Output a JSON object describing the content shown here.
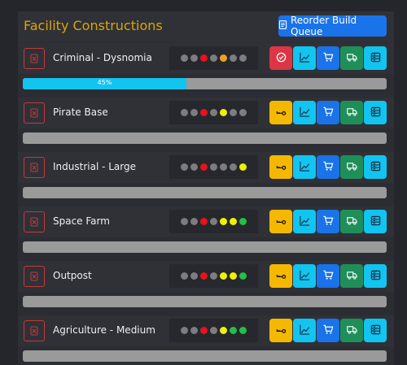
{
  "header": {
    "title": "Facility Constructions",
    "reorder_label": "Reorder Build Queue",
    "reorder_icon": "list-icon"
  },
  "colors": {
    "dot_gray": "#7b7d80",
    "dot_red": "#e8121b",
    "dot_orange": "#f0a020",
    "dot_yellow": "#f0f000",
    "dot_green": "#22c048",
    "danger": "#dc3545",
    "warning": "#f5b800",
    "info": "#12c4f0",
    "primary": "#1a73e8",
    "success": "#1f8f5a"
  },
  "facilities": [
    {
      "name": "Criminal - Dysnomia",
      "dots": [
        "gray",
        "gray",
        "red",
        "gray",
        "orange",
        "gray",
        "gray"
      ],
      "first_action": {
        "icon": "check-circle-icon",
        "color": "danger"
      },
      "progress": 45,
      "progress_label": "45%"
    },
    {
      "name": "Pirate Base",
      "dots": [
        "gray",
        "gray",
        "red",
        "gray",
        "yellow",
        "gray",
        "gray"
      ],
      "first_action": {
        "icon": "key-icon",
        "color": "warning"
      },
      "progress": 0,
      "progress_label": ""
    },
    {
      "name": "Industrial - Large",
      "dots": [
        "gray",
        "gray",
        "red",
        "gray",
        "gray",
        "gray",
        "yellow"
      ],
      "first_action": {
        "icon": "key-icon",
        "color": "warning"
      },
      "progress": 0,
      "progress_label": ""
    },
    {
      "name": "Space Farm",
      "dots": [
        "gray",
        "gray",
        "red",
        "gray",
        "yellow",
        "yellow",
        "green"
      ],
      "first_action": {
        "icon": "key-icon",
        "color": "warning"
      },
      "progress": 0,
      "progress_label": ""
    },
    {
      "name": "Outpost",
      "dots": [
        "gray",
        "gray",
        "red",
        "gray",
        "yellow",
        "yellow",
        "green"
      ],
      "first_action": {
        "icon": "key-icon",
        "color": "warning"
      },
      "progress": 0,
      "progress_label": ""
    },
    {
      "name": "Agriculture - Medium",
      "dots": [
        "gray",
        "gray",
        "red",
        "gray",
        "yellow",
        "green",
        "green"
      ],
      "first_action": {
        "icon": "key-icon",
        "color": "warning"
      },
      "progress": 0,
      "progress_label": ""
    }
  ],
  "actions": [
    {
      "icon": "chart-icon",
      "color": "info"
    },
    {
      "icon": "cart-icon",
      "color": "primary"
    },
    {
      "icon": "truck-icon",
      "color": "success"
    },
    {
      "icon": "storage-icon",
      "color": "info"
    }
  ]
}
